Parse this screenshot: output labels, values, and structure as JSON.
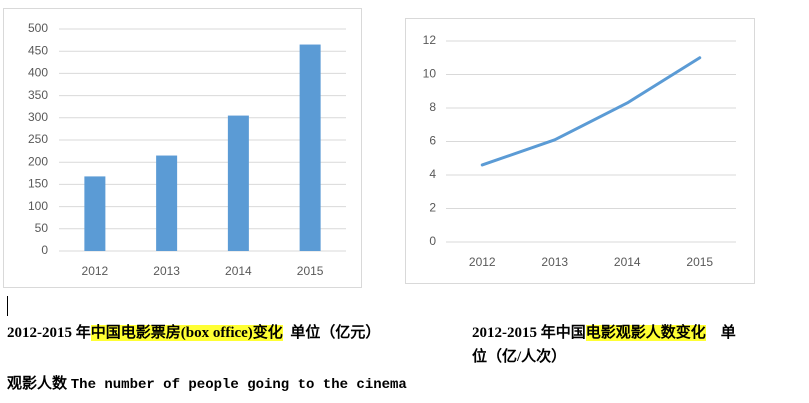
{
  "chart_data": [
    {
      "type": "bar",
      "categories": [
        "2012",
        "2013",
        "2014",
        "2015"
      ],
      "values": [
        168,
        215,
        305,
        465
      ],
      "ylim": [
        0,
        500
      ],
      "yticks": [
        "0",
        "50",
        "100",
        "150",
        "200",
        "250",
        "300",
        "350",
        "400",
        "450",
        "500"
      ],
      "grid": true,
      "color": "#5b9bd5"
    },
    {
      "type": "line",
      "categories": [
        "2012",
        "2013",
        "2014",
        "2015"
      ],
      "values": [
        4.6,
        6.1,
        8.3,
        11.0
      ],
      "ylim": [
        0,
        12
      ],
      "yticks": [
        "0",
        "2",
        "4",
        "6",
        "8",
        "10",
        "12"
      ],
      "grid": true,
      "color": "#5b9bd5"
    }
  ],
  "captions": {
    "left_prefix": "2012-2015 年",
    "left_highlight": "中国电影票房(box office)变化",
    "left_unit": "单位（亿元）",
    "right_prefix": "2012-2015 年中国",
    "right_highlight": "电影观影人数变化",
    "right_unit_start": "单",
    "right_unit_line2": "位（亿/人次）",
    "line3_zh": "观影人数",
    "line3_en": "The number of people going to the cinema"
  }
}
